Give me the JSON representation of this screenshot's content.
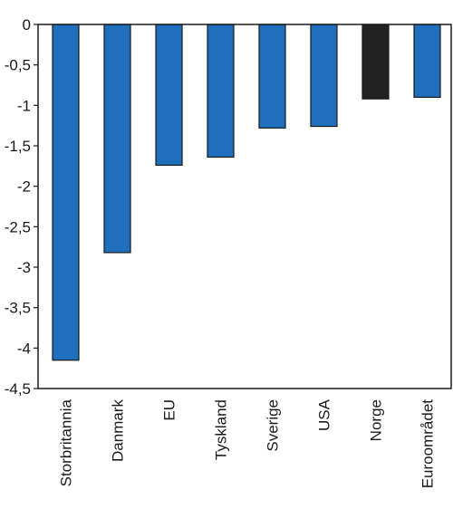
{
  "chart_data": {
    "type": "bar",
    "title": "",
    "xlabel": "",
    "ylabel": "",
    "categories": [
      "Storbritannia",
      "Danmark",
      "EU",
      "Tyskland",
      "Sverige",
      "USA",
      "Norge",
      "Euroområdet"
    ],
    "values": [
      -4.15,
      -2.82,
      -1.74,
      -1.64,
      -1.28,
      -1.26,
      -0.92,
      -0.9
    ],
    "bar_colors": [
      "#1f6fbd",
      "#1f6fbd",
      "#1f6fbd",
      "#1f6fbd",
      "#1f6fbd",
      "#1f6fbd",
      "#222222",
      "#1f6fbd"
    ],
    "ylim": [
      -4.5,
      0
    ],
    "yticks": [
      0,
      -0.5,
      -1,
      -1.5,
      -2,
      -2.5,
      -3,
      -3.5,
      -4,
      -4.5
    ],
    "ytick_labels": [
      "0",
      "-0,5",
      "-1",
      "-1,5",
      "-2",
      "-2,5",
      "-3",
      "-3,5",
      "-4",
      "-4,5"
    ],
    "grid": false,
    "legend": "none"
  }
}
